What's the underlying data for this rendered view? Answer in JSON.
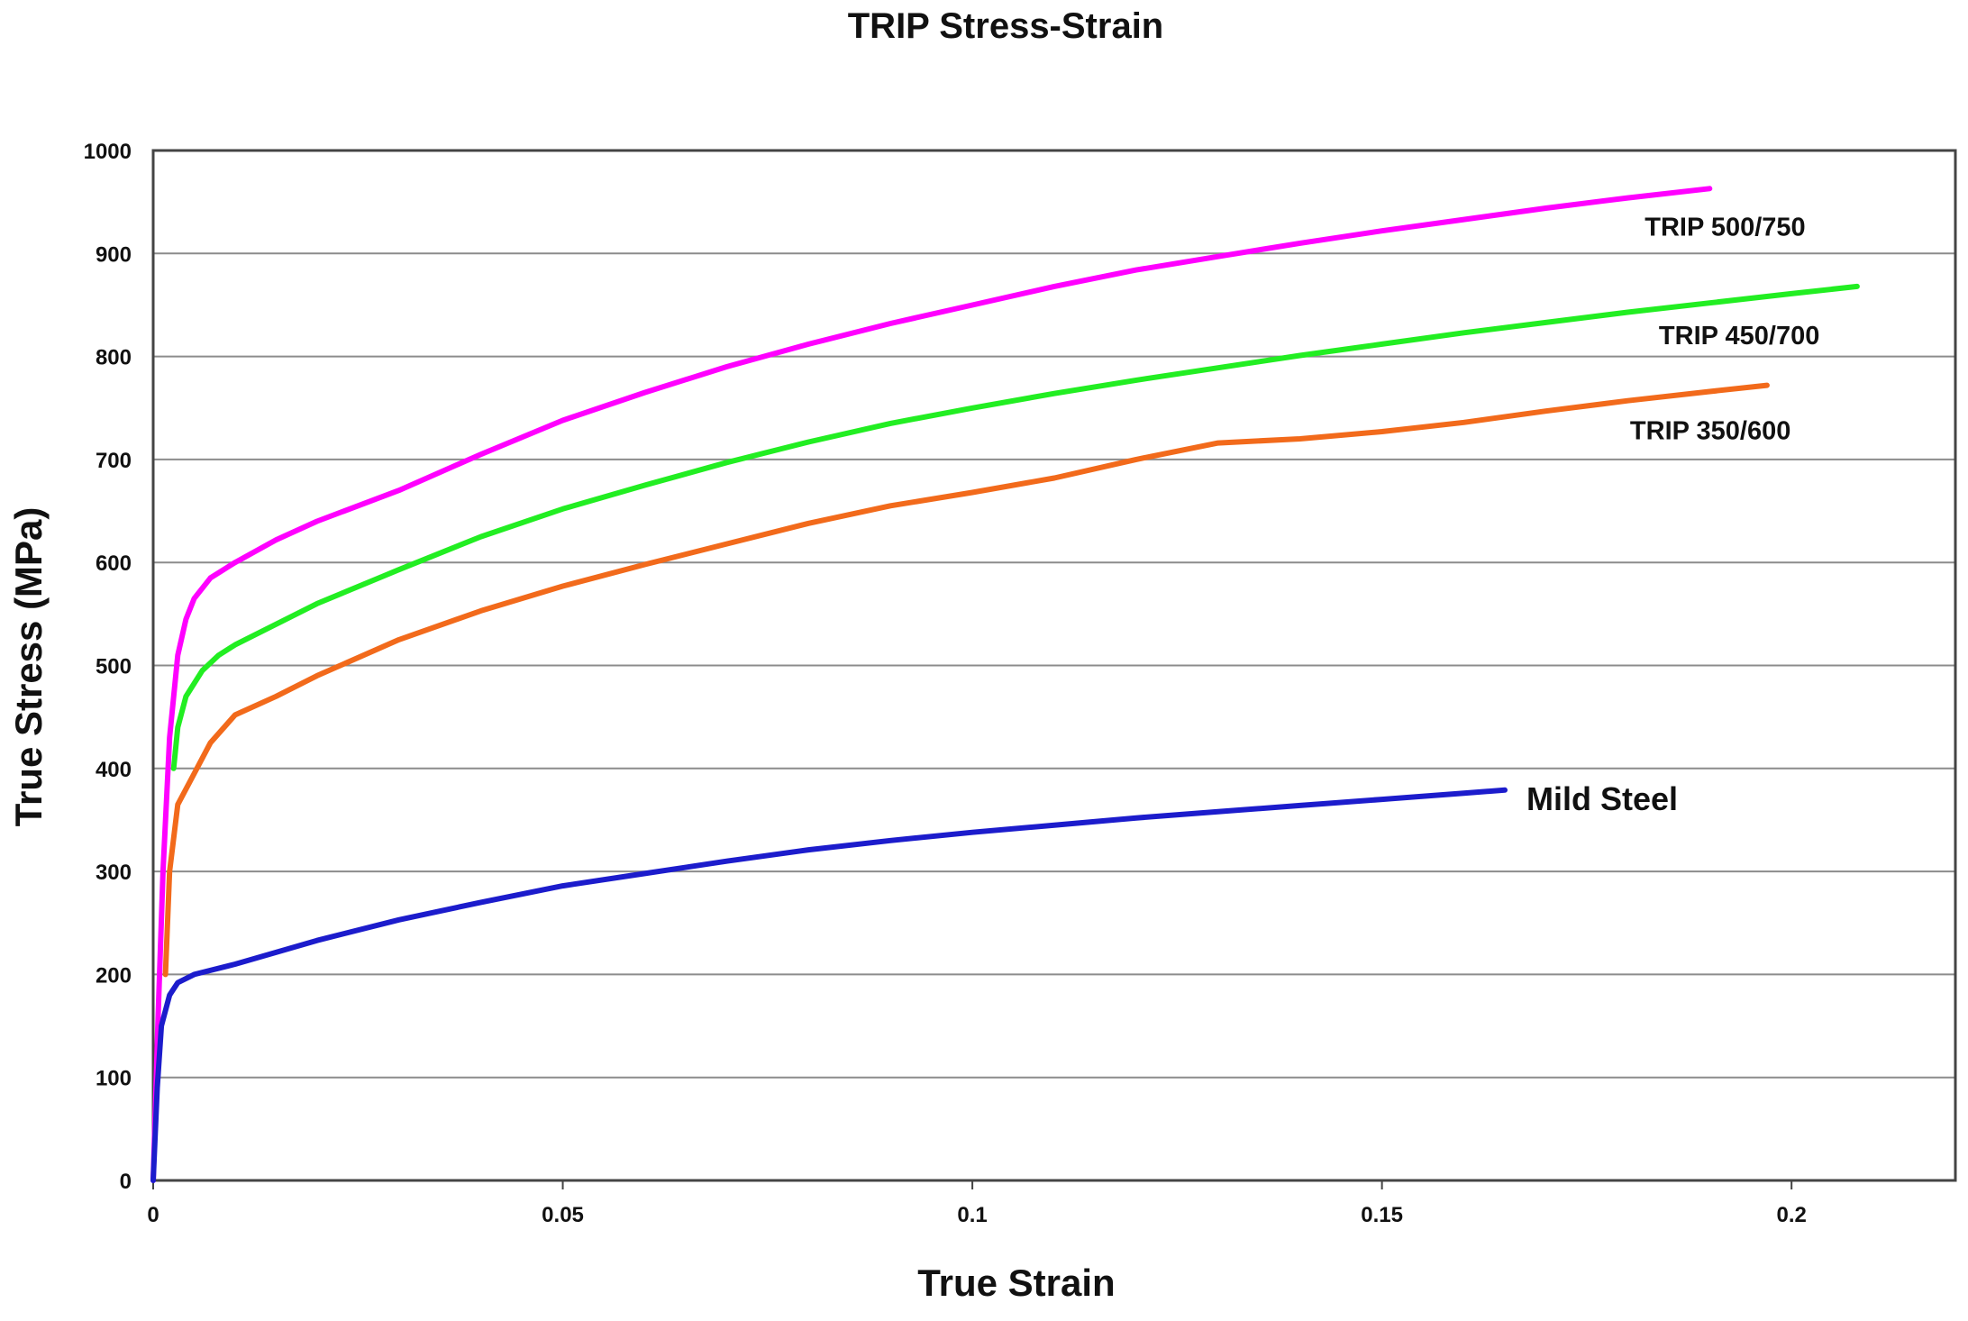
{
  "chart_data": {
    "type": "line",
    "title": "TRIP Stress-Strain",
    "xlabel": "True Strain",
    "ylabel": "True Stress (MPa)",
    "xlim": [
      0,
      0.22
    ],
    "ylim": [
      0,
      1000
    ],
    "x_ticks": [
      0,
      0.05,
      0.1,
      0.15,
      0.2
    ],
    "x_tick_labels": [
      "0",
      "0.05",
      "0.1",
      "0.15",
      "0.2"
    ],
    "y_ticks": [
      0,
      100,
      200,
      300,
      400,
      500,
      600,
      700,
      800,
      900,
      1000
    ],
    "y_tick_labels": [
      "0",
      "100",
      "200",
      "300",
      "400",
      "500",
      "600",
      "700",
      "800",
      "900",
      "1000"
    ],
    "grid": "horizontal",
    "legend": "inline labels at line ends",
    "series": [
      {
        "name": "TRIP 500/750",
        "color": "#ff00ff",
        "points": [
          [
            0,
            0
          ],
          [
            0.0006,
            160
          ],
          [
            0.0012,
            300
          ],
          [
            0.002,
            430
          ],
          [
            0.003,
            510
          ],
          [
            0.004,
            545
          ],
          [
            0.005,
            565
          ],
          [
            0.007,
            585
          ],
          [
            0.01,
            600
          ],
          [
            0.015,
            622
          ],
          [
            0.02,
            640
          ],
          [
            0.03,
            670
          ],
          [
            0.04,
            705
          ],
          [
            0.05,
            738
          ],
          [
            0.06,
            765
          ],
          [
            0.07,
            790
          ],
          [
            0.08,
            812
          ],
          [
            0.09,
            832
          ],
          [
            0.1,
            850
          ],
          [
            0.11,
            868
          ],
          [
            0.12,
            884
          ],
          [
            0.13,
            897
          ],
          [
            0.14,
            910
          ],
          [
            0.15,
            922
          ],
          [
            0.16,
            933
          ],
          [
            0.17,
            944
          ],
          [
            0.18,
            954
          ],
          [
            0.19,
            963
          ]
        ]
      },
      {
        "name": "TRIP 450/700",
        "color": "#22ee22",
        "points": [
          [
            0.0025,
            400
          ],
          [
            0.003,
            440
          ],
          [
            0.004,
            470
          ],
          [
            0.006,
            495
          ],
          [
            0.008,
            510
          ],
          [
            0.01,
            520
          ],
          [
            0.02,
            560
          ],
          [
            0.03,
            593
          ],
          [
            0.04,
            625
          ],
          [
            0.05,
            652
          ],
          [
            0.06,
            675
          ],
          [
            0.07,
            697
          ],
          [
            0.08,
            717
          ],
          [
            0.09,
            735
          ],
          [
            0.1,
            750
          ],
          [
            0.11,
            764
          ],
          [
            0.12,
            777
          ],
          [
            0.13,
            789
          ],
          [
            0.14,
            801
          ],
          [
            0.15,
            812
          ],
          [
            0.16,
            823
          ],
          [
            0.17,
            833
          ],
          [
            0.18,
            843
          ],
          [
            0.19,
            852
          ],
          [
            0.2,
            861
          ],
          [
            0.208,
            868
          ]
        ]
      },
      {
        "name": "TRIP 350/600",
        "color": "#f26a1b",
        "points": [
          [
            0.0015,
            200
          ],
          [
            0.002,
            300
          ],
          [
            0.003,
            365
          ],
          [
            0.005,
            395
          ],
          [
            0.007,
            425
          ],
          [
            0.01,
            452
          ],
          [
            0.015,
            470
          ],
          [
            0.02,
            490
          ],
          [
            0.03,
            525
          ],
          [
            0.04,
            553
          ],
          [
            0.05,
            577
          ],
          [
            0.06,
            598
          ],
          [
            0.07,
            618
          ],
          [
            0.08,
            638
          ],
          [
            0.09,
            655
          ],
          [
            0.1,
            668
          ],
          [
            0.11,
            682
          ],
          [
            0.12,
            700
          ],
          [
            0.13,
            716
          ],
          [
            0.14,
            720
          ],
          [
            0.15,
            727
          ],
          [
            0.16,
            736
          ],
          [
            0.17,
            747
          ],
          [
            0.18,
            757
          ],
          [
            0.19,
            766
          ],
          [
            0.197,
            772
          ]
        ]
      },
      {
        "name": "Mild Steel",
        "color": "#1c1ccc",
        "points": [
          [
            0,
            0
          ],
          [
            0.0005,
            90
          ],
          [
            0.001,
            150
          ],
          [
            0.002,
            180
          ],
          [
            0.003,
            192
          ],
          [
            0.005,
            200
          ],
          [
            0.01,
            210
          ],
          [
            0.02,
            233
          ],
          [
            0.03,
            253
          ],
          [
            0.04,
            270
          ],
          [
            0.05,
            286
          ],
          [
            0.06,
            298
          ],
          [
            0.07,
            310
          ],
          [
            0.08,
            321
          ],
          [
            0.09,
            330
          ],
          [
            0.1,
            338
          ],
          [
            0.11,
            345
          ],
          [
            0.12,
            352
          ],
          [
            0.13,
            358
          ],
          [
            0.14,
            364
          ],
          [
            0.15,
            370
          ],
          [
            0.16,
            376
          ],
          [
            0.165,
            379
          ]
        ]
      }
    ]
  }
}
